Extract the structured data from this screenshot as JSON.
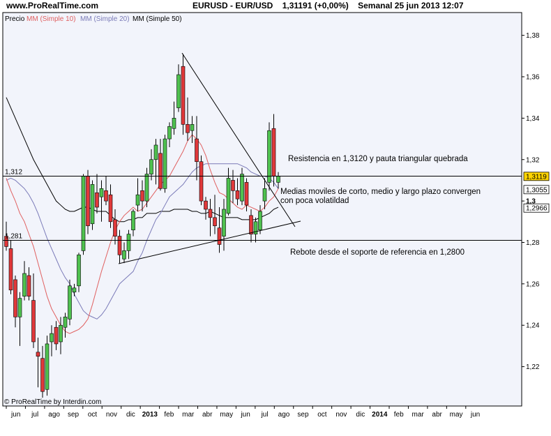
{
  "header": {
    "site": "www.ProRealTime.com",
    "instrument": "EURUSD - EUR/USD",
    "price_info": "1,31191 (+0,00%)",
    "period_info": "Semanal 25 jun 2013 12:07"
  },
  "legend": {
    "price_label": "Precio",
    "ma10_label": "MM (Simple 10)",
    "ma20_label": "MM (Simple 20)",
    "ma50_label": "MM (Simple 50)"
  },
  "footer": {
    "copyright": "© ProRealTime by Interdin.com"
  },
  "colors": {
    "up": "#4fc14f",
    "down": "#e0383a",
    "ma10": "#e06060",
    "ma20": "#7a7ab8",
    "ma50": "#000000",
    "plot_bg": "#f2f4fb",
    "price_tag": "#ffd400"
  },
  "chart_data": {
    "type": "candlestick",
    "x_tick_labels": [
      "jun",
      "jul",
      "ago",
      "sep",
      "oct",
      "nov",
      "dic",
      "2013",
      "feb",
      "mar",
      "abr",
      "may",
      "jun",
      "jul",
      "ago",
      "sep",
      "oct",
      "nov",
      "dic",
      "2014",
      "feb",
      "mar",
      "abr",
      "may",
      "jun"
    ],
    "ylim": [
      1.201,
      1.391
    ],
    "y_ticks": [
      1.22,
      1.24,
      1.26,
      1.28,
      1.3,
      1.32,
      1.34,
      1.36,
      1.38
    ],
    "y_tick_labels": [
      "1,22",
      "1,24",
      "1,26",
      "1,28",
      "1,3",
      "1,32",
      "1,34",
      "1,36",
      "1,38"
    ],
    "grid": false,
    "legend_position": "top-left",
    "price_tags": [
      {
        "label": "1,3119",
        "value": 1.3119,
        "highlight": true
      },
      {
        "label": "1,3055",
        "value": 1.3055,
        "highlight": false
      },
      {
        "label": "1,2966",
        "value": 1.2966,
        "highlight": false
      }
    ],
    "horizontal_levels": [
      {
        "label": "1,312",
        "value": 1.312
      },
      {
        "label": "1,281",
        "value": 1.281
      }
    ],
    "annotations": [
      "Resistencia en 1,3120 y pauta triangular quebrada",
      "Medias moviles de corto, medio y largo plazo convergen",
      "con poca volatildad",
      "Rebote desde el soporte de referencia en 1,2800"
    ],
    "candles": [
      {
        "o": 1.283,
        "h": 1.29,
        "l": 1.276,
        "c": 1.278
      },
      {
        "o": 1.277,
        "h": 1.281,
        "l": 1.255,
        "c": 1.257
      },
      {
        "o": 1.262,
        "h": 1.264,
        "l": 1.239,
        "c": 1.244
      },
      {
        "o": 1.244,
        "h": 1.256,
        "l": 1.23,
        "c": 1.253
      },
      {
        "o": 1.254,
        "h": 1.271,
        "l": 1.252,
        "c": 1.265
      },
      {
        "o": 1.264,
        "h": 1.268,
        "l": 1.252,
        "c": 1.254
      },
      {
        "o": 1.252,
        "h": 1.265,
        "l": 1.229,
        "c": 1.232
      },
      {
        "o": 1.227,
        "h": 1.234,
        "l": 1.21,
        "c": 1.225
      },
      {
        "o": 1.224,
        "h": 1.23,
        "l": 1.205,
        "c": 1.208
      },
      {
        "o": 1.209,
        "h": 1.235,
        "l": 1.206,
        "c": 1.231
      },
      {
        "o": 1.232,
        "h": 1.24,
        "l": 1.225,
        "c": 1.236
      },
      {
        "o": 1.239,
        "h": 1.242,
        "l": 1.228,
        "c": 1.231
      },
      {
        "o": 1.232,
        "h": 1.244,
        "l": 1.226,
        "c": 1.24
      },
      {
        "o": 1.239,
        "h": 1.246,
        "l": 1.234,
        "c": 1.244
      },
      {
        "o": 1.243,
        "h": 1.262,
        "l": 1.24,
        "c": 1.259
      },
      {
        "o": 1.256,
        "h": 1.26,
        "l": 1.254,
        "c": 1.258
      },
      {
        "o": 1.259,
        "h": 1.275,
        "l": 1.256,
        "c": 1.274
      },
      {
        "o": 1.276,
        "h": 1.313,
        "l": 1.274,
        "c": 1.312
      },
      {
        "o": 1.312,
        "h": 1.315,
        "l": 1.284,
        "c": 1.288
      },
      {
        "o": 1.289,
        "h": 1.31,
        "l": 1.286,
        "c": 1.308
      },
      {
        "o": 1.304,
        "h": 1.313,
        "l": 1.294,
        "c": 1.297
      },
      {
        "o": 1.302,
        "h": 1.31,
        "l": 1.29,
        "c": 1.306
      },
      {
        "o": 1.305,
        "h": 1.312,
        "l": 1.298,
        "c": 1.3
      },
      {
        "o": 1.303,
        "h": 1.308,
        "l": 1.287,
        "c": 1.29
      },
      {
        "o": 1.291,
        "h": 1.296,
        "l": 1.279,
        "c": 1.283
      },
      {
        "o": 1.283,
        "h": 1.286,
        "l": 1.27,
        "c": 1.274
      },
      {
        "o": 1.272,
        "h": 1.28,
        "l": 1.27,
        "c": 1.276
      },
      {
        "o": 1.276,
        "h": 1.286,
        "l": 1.272,
        "c": 1.284
      },
      {
        "o": 1.286,
        "h": 1.296,
        "l": 1.283,
        "c": 1.295
      },
      {
        "o": 1.298,
        "h": 1.311,
        "l": 1.295,
        "c": 1.303
      },
      {
        "o": 1.305,
        "h": 1.31,
        "l": 1.295,
        "c": 1.3
      },
      {
        "o": 1.3,
        "h": 1.316,
        "l": 1.297,
        "c": 1.313
      },
      {
        "o": 1.313,
        "h": 1.325,
        "l": 1.31,
        "c": 1.32
      },
      {
        "o": 1.32,
        "h": 1.33,
        "l": 1.308,
        "c": 1.327
      },
      {
        "o": 1.323,
        "h": 1.33,
        "l": 1.305,
        "c": 1.306
      },
      {
        "o": 1.306,
        "h": 1.332,
        "l": 1.304,
        "c": 1.33
      },
      {
        "o": 1.33,
        "h": 1.338,
        "l": 1.326,
        "c": 1.336
      },
      {
        "o": 1.335,
        "h": 1.348,
        "l": 1.332,
        "c": 1.34
      },
      {
        "o": 1.345,
        "h": 1.366,
        "l": 1.343,
        "c": 1.361
      },
      {
        "o": 1.365,
        "h": 1.371,
        "l": 1.332,
        "c": 1.337
      },
      {
        "o": 1.337,
        "h": 1.35,
        "l": 1.329,
        "c": 1.333
      },
      {
        "o": 1.334,
        "h": 1.341,
        "l": 1.328,
        "c": 1.337
      },
      {
        "o": 1.33,
        "h": 1.341,
        "l": 1.31,
        "c": 1.319
      },
      {
        "o": 1.319,
        "h": 1.322,
        "l": 1.298,
        "c": 1.3
      },
      {
        "o": 1.3,
        "h": 1.302,
        "l": 1.291,
        "c": 1.296
      },
      {
        "o": 1.296,
        "h": 1.301,
        "l": 1.283,
        "c": 1.292
      },
      {
        "o": 1.292,
        "h": 1.303,
        "l": 1.284,
        "c": 1.288
      },
      {
        "o": 1.287,
        "h": 1.297,
        "l": 1.275,
        "c": 1.279
      },
      {
        "o": 1.283,
        "h": 1.301,
        "l": 1.276,
        "c": 1.296
      },
      {
        "o": 1.294,
        "h": 1.316,
        "l": 1.293,
        "c": 1.311
      },
      {
        "o": 1.31,
        "h": 1.315,
        "l": 1.299,
        "c": 1.305
      },
      {
        "o": 1.305,
        "h": 1.311,
        "l": 1.298,
        "c": 1.301
      },
      {
        "o": 1.3,
        "h": 1.316,
        "l": 1.298,
        "c": 1.313
      },
      {
        "o": 1.309,
        "h": 1.311,
        "l": 1.295,
        "c": 1.298
      },
      {
        "o": 1.293,
        "h": 1.296,
        "l": 1.28,
        "c": 1.284
      },
      {
        "o": 1.284,
        "h": 1.292,
        "l": 1.28,
        "c": 1.29
      },
      {
        "o": 1.286,
        "h": 1.298,
        "l": 1.284,
        "c": 1.295
      },
      {
        "o": 1.3,
        "h": 1.311,
        "l": 1.296,
        "c": 1.306
      },
      {
        "o": 1.309,
        "h": 1.338,
        "l": 1.305,
        "c": 1.334
      },
      {
        "o": 1.335,
        "h": 1.342,
        "l": 1.307,
        "c": 1.312
      },
      {
        "o": 1.309,
        "h": 1.314,
        "l": 1.306,
        "c": 1.312
      }
    ],
    "ma10": [
      1.311,
      1.305,
      1.3,
      1.294,
      1.29,
      1.284,
      1.278,
      1.27,
      1.262,
      1.254,
      1.248,
      1.244,
      1.24,
      1.237,
      1.236,
      1.237,
      1.238,
      1.24,
      1.243,
      1.25,
      1.258,
      1.266,
      1.273,
      1.28,
      1.286,
      1.29,
      1.293,
      1.295,
      1.297,
      1.295,
      1.296,
      1.299,
      1.302,
      1.305,
      1.308,
      1.31,
      1.312,
      1.316,
      1.32,
      1.324,
      1.329,
      1.332,
      1.33,
      1.327,
      1.322,
      1.315,
      1.309,
      1.304,
      1.303,
      1.301,
      1.299,
      1.297,
      1.296,
      1.298,
      1.297,
      1.296,
      1.295,
      1.297,
      1.3,
      1.302,
      1.306
    ],
    "ma20": [
      1.31,
      1.311,
      1.31,
      1.308,
      1.306,
      1.303,
      1.299,
      1.294,
      1.288,
      1.282,
      1.277,
      1.272,
      1.267,
      1.263,
      1.26,
      1.255,
      1.251,
      1.247,
      1.245,
      1.244,
      1.243,
      1.245,
      1.248,
      1.252,
      1.256,
      1.26,
      1.262,
      1.264,
      1.266,
      1.271,
      1.275,
      1.281,
      1.286,
      1.291,
      1.294,
      1.298,
      1.302,
      1.304,
      1.306,
      1.308,
      1.311,
      1.314,
      1.316,
      1.317,
      1.318,
      1.318,
      1.318,
      1.318,
      1.318,
      1.318,
      1.318,
      1.318,
      1.317,
      1.316,
      1.314,
      1.313,
      1.312,
      1.312,
      1.311,
      1.309,
      1.306
    ],
    "ma50": [
      1.35,
      1.345,
      1.34,
      1.335,
      1.33,
      1.325,
      1.32,
      1.316,
      1.312,
      1.308,
      1.304,
      1.3,
      1.298,
      1.296,
      1.295,
      1.295,
      1.296,
      1.297,
      1.297,
      1.296,
      1.295,
      1.295,
      1.295,
      1.293,
      1.291,
      1.29,
      1.29,
      1.291,
      1.291,
      1.292,
      1.292,
      1.294,
      1.294,
      1.294,
      1.295,
      1.295,
      1.295,
      1.296,
      1.296,
      1.296,
      1.296,
      1.295,
      1.295,
      1.294,
      1.294,
      1.295,
      1.294,
      1.293,
      1.292,
      1.292,
      1.292,
      1.292,
      1.291,
      1.291,
      1.291,
      1.291,
      1.292,
      1.293,
      1.294,
      1.296,
      1.297
    ]
  }
}
